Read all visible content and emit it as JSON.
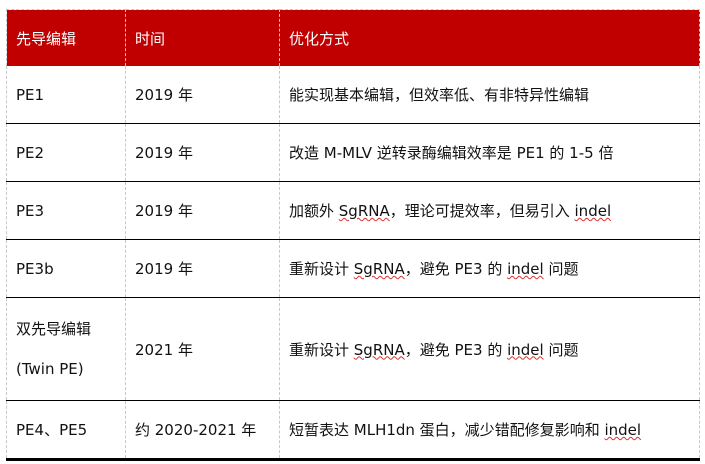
{
  "headers": [
    "先导编辑",
    "时间",
    "优化方式"
  ],
  "rows": [
    {
      "editor": "PE1",
      "time": "2019 年",
      "method": "能实现基本编辑，但效率低、有非特异性编辑"
    },
    {
      "editor": "PE2",
      "time": "2019 年",
      "method": "改造 M-MLV 逆转录酶编辑效率是 PE1 的 1-5 倍"
    },
    {
      "editor": "PE3",
      "time": "2019 年",
      "method_a": "加额外 ",
      "method_sg": "SgRNA",
      "method_b": "，理论可提效率，但易引入 ",
      "method_indel": "indel"
    },
    {
      "editor": "PE3b",
      "time": "2019 年",
      "method_a": "重新设计 ",
      "method_sg": "SgRNA",
      "method_b": "，避免 PE3 的 ",
      "method_indel": "indel",
      "method_c": " 问题"
    },
    {
      "editor_line1": "双先导编辑",
      "editor_line2": "(Twin PE)",
      "time": "2021 年",
      "method_a": "重新设计 ",
      "method_sg": "SgRNA",
      "method_b": "，避免 PE3 的 ",
      "method_indel": "indel",
      "method_c": " 问题"
    },
    {
      "editor": "PE4、PE5",
      "time": "约 2020-2021 年",
      "method_a": "短暂表达 MLH1dn 蛋白，减少错配修复影响和 ",
      "method_indel": "indel"
    }
  ],
  "colors": {
    "header_bg": "#c00000",
    "header_text": "#ffffff"
  }
}
